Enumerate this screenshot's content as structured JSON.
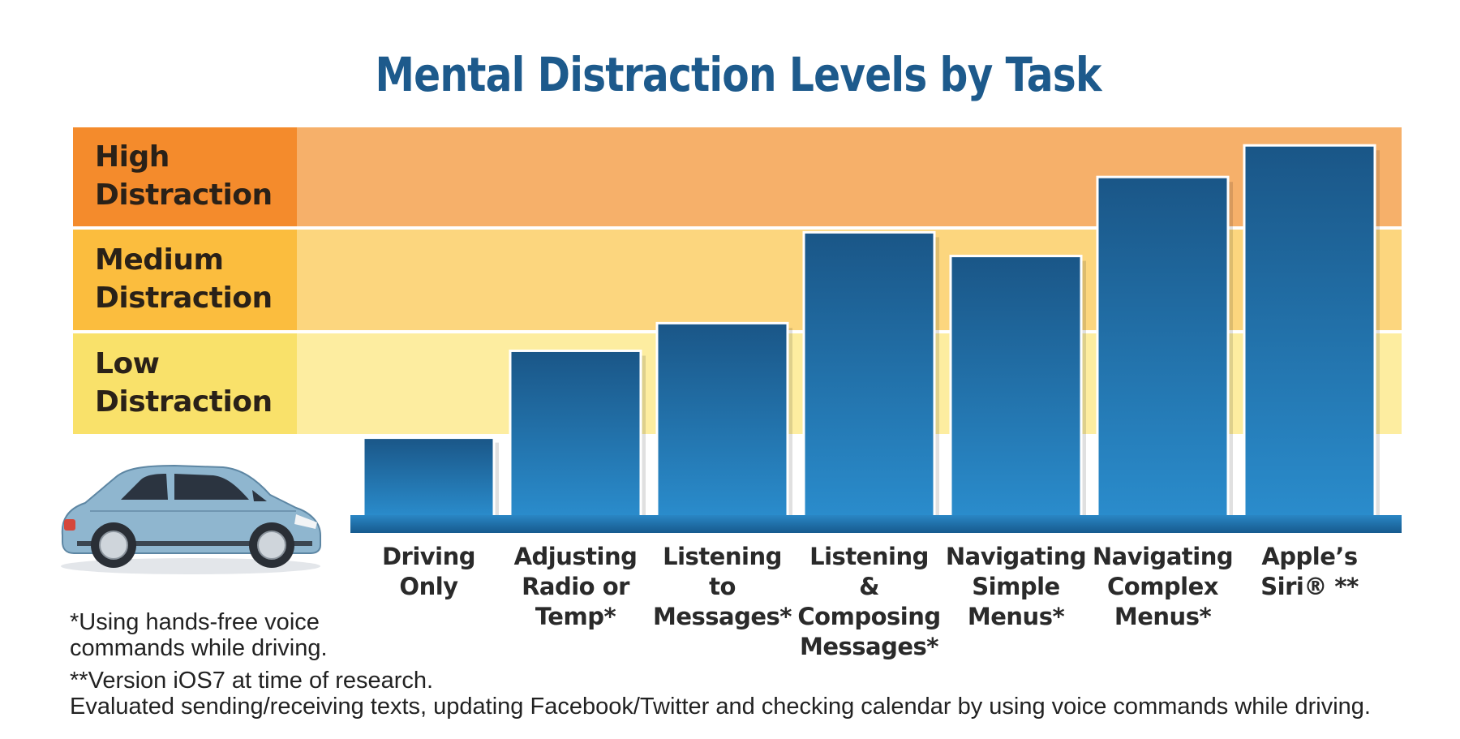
{
  "title": "Mental Distraction Levels by Task",
  "bands": [
    {
      "id": "high",
      "label": "High\nDistraction",
      "color": "#f48b2c"
    },
    {
      "id": "medium",
      "label": "Medium\nDistraction",
      "color": "#fbbd3e"
    },
    {
      "id": "low",
      "label": "Low\nDistraction",
      "color": "#f9e16a"
    }
  ],
  "chart_data": {
    "type": "bar",
    "title": "Mental Distraction Levels by Task",
    "categories": [
      "Driving\nOnly",
      "Adjusting\nRadio or\nTemp*",
      "Listening to\nMessages*",
      "Listening &\nComposing\nMessages*",
      "Navigating\nSimple\nMenus*",
      "Navigating\nComplex\nMenus*",
      "Apple’s\nSiri® **"
    ],
    "values": [
      1.0,
      2.1,
      2.45,
      3.6,
      3.3,
      4.3,
      4.7
    ],
    "ylim": [
      0,
      5
    ],
    "bar_color": "#1f6aa5",
    "axis_color": "#1d6fa8",
    "legend": "none",
    "grid": false
  },
  "footnotes": {
    "hands_free": "*Using hands-free voice\ncommands while driving.",
    "version": "**Version iOS7 at time of research.\nEvaluated sending/receiving texts, updating Facebook/Twitter and checking calendar by using voice commands while driving."
  }
}
